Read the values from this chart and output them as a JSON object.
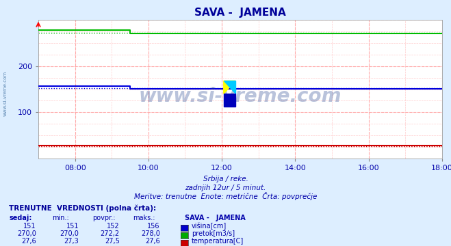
{
  "title": "SAVA -  JAMENA",
  "subtitle1": "Srbija / reke.",
  "subtitle2": "zadnjih 12ur / 5 minut.",
  "subtitle3": "Meritve: trenutne  Enote: metrične  Črta: povprečje",
  "bg_color": "#ddeeff",
  "plot_bg_color": "#ffffff",
  "grid_color_major": "#ffaaaa",
  "grid_color_minor": "#ffcccc",
  "title_color": "#000099",
  "text_color": "#0000aa",
  "xmin": 7.0,
  "xmax": 18.0,
  "ymin": 0,
  "ymax": 300,
  "yticks": [
    100,
    200
  ],
  "xticks": [
    8,
    10,
    12,
    14,
    16,
    18
  ],
  "xtick_labels": [
    "08:00",
    "10:00",
    "12:00",
    "14:00",
    "16:00",
    "18:00"
  ],
  "green_line_color": "#00bb00",
  "blue_line_color": "#0000dd",
  "red_line_color": "#cc0000",
  "green_data_x": [
    7.0,
    9.5,
    9.5,
    18.0
  ],
  "green_data_y": [
    278.0,
    278.0,
    270.0,
    270.0
  ],
  "blue_data_x": [
    7.0,
    9.5,
    9.5,
    18.0
  ],
  "blue_data_y": [
    156.0,
    156.0,
    151.0,
    151.0
  ],
  "red_data_x": [
    7.0,
    18.0
  ],
  "red_data_y": [
    27.6,
    27.6
  ],
  "green_avg": 272.2,
  "blue_avg": 152.0,
  "red_avg": 27.5,
  "table_header": "TRENUTNE  VREDNOSTI (polna črta):",
  "col_label_sedaj": "sedaj:",
  "col_label_min": "min.:",
  "col_label_povpr": "povpr.:",
  "col_label_maks": "maks.:",
  "col_label_station": "SAVA -   JAMENA",
  "row1_vals": [
    "151",
    "151",
    "152",
    "156"
  ],
  "row1_label": "višina[cm]",
  "row1_color": "#0000cc",
  "row2_vals": [
    "270,0",
    "270,0",
    "272,2",
    "278,0"
  ],
  "row2_label": "pretok[m3/s]",
  "row2_color": "#00aa00",
  "row3_vals": [
    "27,6",
    "27,3",
    "27,5",
    "27,6"
  ],
  "row3_label": "temperatura[C]",
  "row3_color": "#cc0000",
  "watermark": "www.si-vreme.com",
  "watermark_color": "#1a3a8a",
  "sidebar_text": "www.si-vreme.com"
}
